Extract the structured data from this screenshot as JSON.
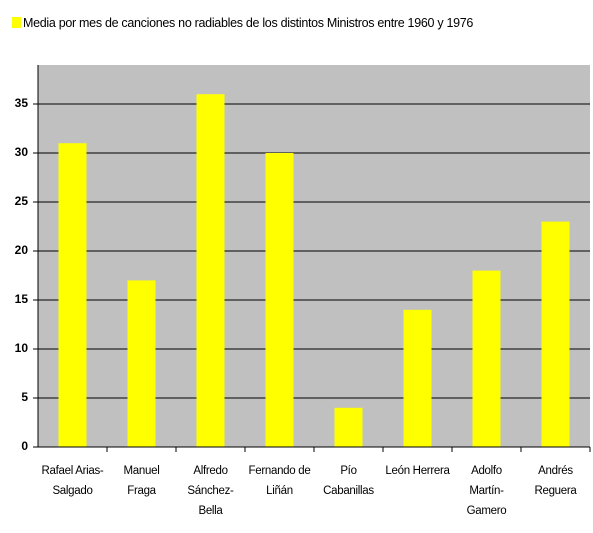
{
  "chart_data": {
    "type": "bar",
    "legend": "Media por mes de canciones no radiables de los distintos Ministros entre 1960 y 1976",
    "categories": [
      "Rafael Arias-\nSalgado",
      "Manuel\nFraga",
      "Alfredo\nSánchez-\nBella",
      "Fernando de\nLiñán",
      "Pío\nCabanillas",
      "León Herrera",
      "Adolfo\nMartín-\nGamero",
      "Andrés\nReguera"
    ],
    "values": [
      31,
      17,
      36,
      30,
      4,
      14,
      18,
      23
    ],
    "color": "#ffff00",
    "background": "#c0c0c0",
    "ylim": [
      0,
      40
    ],
    "yticks": [
      0,
      5,
      10,
      15,
      20,
      25,
      30,
      35
    ],
    "grid": true
  }
}
